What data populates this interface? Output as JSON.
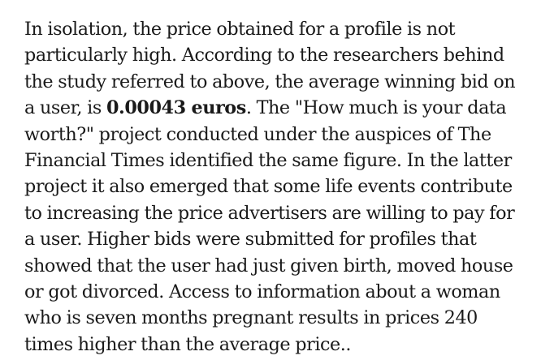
{
  "article": {
    "lines": [
      "In isolation, the price obtained for a profile is not",
      "particularly high. According to the researchers behind",
      "the study referred to above, the average winning bid on",
      {
        "before": "a user, is ",
        "bold": "0.00043 euros",
        "after": ". The \"How much is your data"
      },
      "worth?\" project conducted under the auspices of The",
      "Financial Times identified the same figure. In the latter",
      "project it also emerged that some life events contribute",
      "to increasing the price advertisers are willing to pay for",
      "a user. Higher bids were submitted for profiles that",
      "showed that the user had just given birth, moved house",
      "or got divorced. Access to information about a woman",
      "who is seven months pregnant results in prices 240",
      "times higher than the average price.."
    ]
  }
}
